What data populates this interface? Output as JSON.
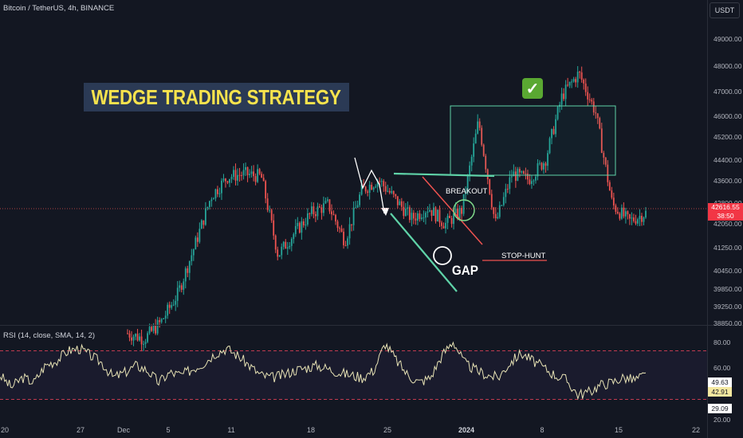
{
  "header": {
    "symbol": "Bitcoin / TetherUS, 4h, BINANCE"
  },
  "currency": "USDT",
  "annotations": {
    "title": "WEDGE TRADING STRATEGY",
    "breakout": "BREAKOUT",
    "stop_hunt": "STOP-HUNT",
    "gap": "GAP",
    "check_icon": "check-icon"
  },
  "price_tag": {
    "price": "42616.55",
    "countdown": "38:50",
    "color": "#f23645"
  },
  "rsi": {
    "label": "RSI (14, close, SMA, 14, 2)",
    "ticks": [
      "80.00",
      "60.00",
      "20.00"
    ],
    "value_tag": "49.63",
    "ma_tag": "42.91",
    "lower_tag": "29.09",
    "upper_band": 70,
    "lower_band": 30
  },
  "colors": {
    "up": "#26a69a",
    "down": "#ef5350",
    "wedge": "#5fd3a8",
    "rsi_line": "#e8e3b5",
    "band": "#c23b52"
  },
  "chart_data": {
    "type": "candlestick",
    "title": "Bitcoin / TetherUS, 4h, BINANCE",
    "ylim": [
      38600,
      49700
    ],
    "y_ticks": [
      "49000.00",
      "48000.00",
      "47000.00",
      "46000.00",
      "45200.00",
      "44400.00",
      "43600.00",
      "42800.00",
      "42050.00",
      "41250.00",
      "40450.00",
      "39850.00",
      "39250.00",
      "38850.00"
    ],
    "x_ticks": [
      "20",
      "27",
      "Dec",
      "5",
      "11",
      "18",
      "25",
      "2024",
      "8",
      "15",
      "22"
    ],
    "close_path": [
      [
        "20",
        38300
      ],
      [
        "27",
        38100
      ],
      [
        "Dec",
        38700
      ],
      [
        "Dec",
        39700
      ],
      [
        "Dec",
        41400
      ],
      [
        "5",
        43200
      ],
      [
        "5",
        43900
      ],
      [
        "5",
        44000
      ],
      [
        "11",
        43900
      ],
      [
        "11",
        41100
      ],
      [
        "11",
        41900
      ],
      [
        "11",
        42600
      ],
      [
        "18",
        42900
      ],
      [
        "18",
        41600
      ],
      [
        "18",
        43400
      ],
      [
        "25",
        43800
      ],
      [
        "25",
        43100
      ],
      [
        "25",
        42400
      ],
      [
        "25",
        42800
      ],
      [
        "25",
        42200
      ],
      [
        "2024",
        42700
      ],
      [
        "2024",
        45900
      ],
      [
        "2024",
        42200
      ],
      [
        "8",
        44000
      ],
      [
        "8",
        43800
      ],
      [
        "8",
        44500
      ],
      [
        "8",
        46800
      ],
      [
        "8",
        47600
      ],
      [
        "8",
        46200
      ],
      [
        "15",
        42900
      ],
      [
        "15",
        42300
      ],
      [
        "15",
        42600
      ]
    ],
    "last_price": 42616.55,
    "rsi_series": [
      50,
      40,
      48,
      44,
      58,
      62,
      70,
      72,
      66,
      60,
      48,
      52,
      58,
      54,
      44,
      52,
      50,
      55,
      60,
      68,
      72,
      66,
      58,
      50,
      48,
      50,
      54,
      56,
      58,
      55,
      52,
      50,
      48,
      54,
      76,
      62,
      50,
      44,
      48,
      66,
      78,
      60,
      54,
      50,
      48,
      60,
      68,
      62,
      56,
      50,
      46,
      34,
      36,
      42,
      44,
      48,
      46,
      50
    ]
  }
}
